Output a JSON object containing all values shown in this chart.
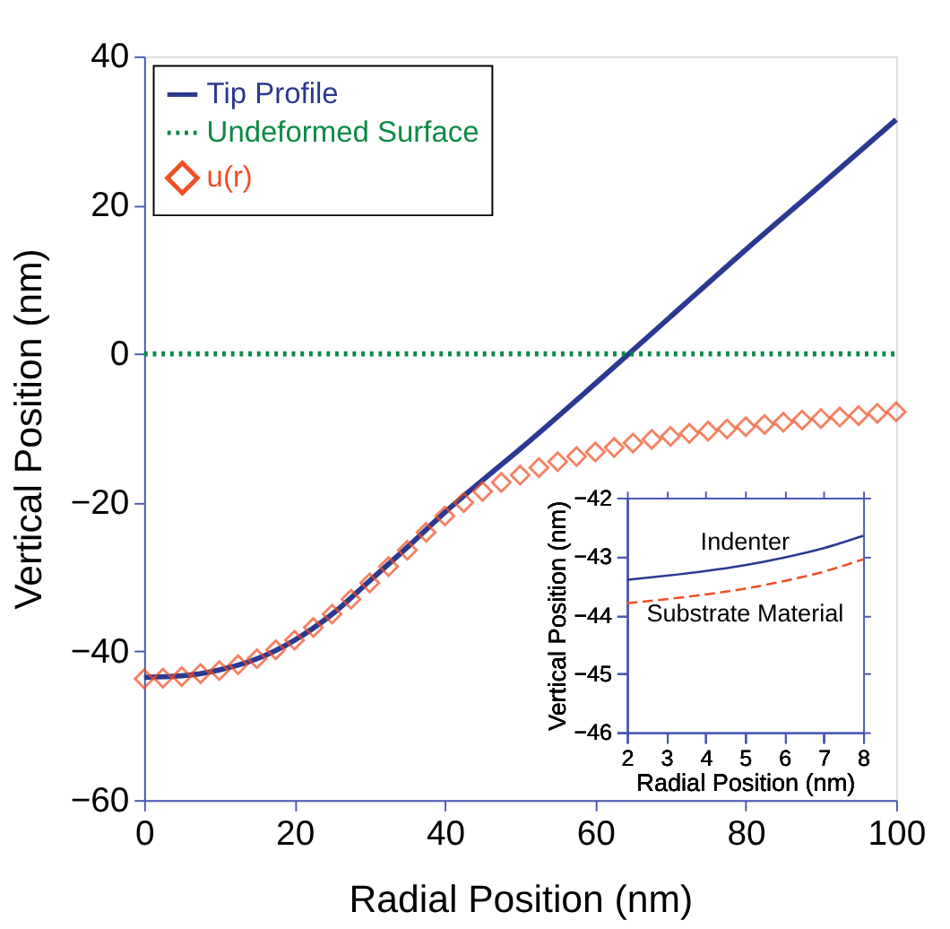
{
  "chart_data": [
    {
      "type": "line",
      "xlabel": "Radial Position (nm)",
      "ylabel": "Vertical Position (nm)",
      "xlim": [
        0,
        100
      ],
      "ylim": [
        -60,
        40
      ],
      "xticks": [
        0,
        20,
        40,
        60,
        80,
        100
      ],
      "yticks": [
        -60,
        -40,
        -20,
        0,
        20,
        40
      ],
      "legend": "top left",
      "series": [
        {
          "name": "Tip Profile",
          "color": "#2b3990",
          "line_style": "solid",
          "x": [
            0,
            5,
            10,
            15,
            20,
            25,
            30,
            35,
            40,
            45,
            50,
            60,
            70,
            80,
            90,
            100
          ],
          "values": [
            -43.5,
            -43.3,
            -42.5,
            -41,
            -38.5,
            -35,
            -30.5,
            -26,
            -21.3,
            -17,
            -12.8,
            -4,
            5,
            14,
            22.7,
            31.5
          ]
        },
        {
          "name": "Undeformed Surface",
          "color": "#0b8a45",
          "line_style": "dotted",
          "x": [
            0,
            100
          ],
          "values": [
            0,
            0
          ]
        },
        {
          "name": "u(r)",
          "type": "scatter",
          "color": "#f04e23",
          "marker": "diamond",
          "x": [
            0,
            2.5,
            5,
            7.5,
            10,
            12.5,
            15,
            17.5,
            20,
            22.5,
            25,
            27.5,
            30,
            32.5,
            35,
            37.5,
            40,
            42.5,
            45,
            47.5,
            50,
            52.5,
            55,
            57.5,
            60,
            62.5,
            65,
            67.5,
            70,
            72.5,
            75,
            77.5,
            80,
            82.5,
            85,
            87.5,
            90,
            92.5,
            95,
            97.5,
            100
          ],
          "values": [
            -43.7,
            -43.6,
            -43.4,
            -43,
            -42.6,
            -41.8,
            -41,
            -39.8,
            -38.5,
            -36.8,
            -35,
            -33,
            -30.8,
            -28.6,
            -26.4,
            -24,
            -21.8,
            -20,
            -18.5,
            -17.3,
            -16.3,
            -15.3,
            -14.5,
            -13.8,
            -13.2,
            -12.6,
            -12,
            -11.5,
            -11.1,
            -10.7,
            -10.4,
            -10.1,
            -9.8,
            -9.5,
            -9.2,
            -8.9,
            -8.7,
            -8.5,
            -8.3,
            -8,
            -7.8
          ]
        }
      ]
    },
    {
      "type": "line",
      "xlabel": "Radial Position (nm)",
      "ylabel": "Vertical Position (nm)",
      "xlim": [
        2,
        8
      ],
      "ylim": [
        -46,
        -42
      ],
      "xticks": [
        2,
        3,
        4,
        5,
        6,
        7,
        8
      ],
      "yticks": [
        -46,
        -45,
        -44,
        -43,
        -42
      ],
      "series": [
        {
          "color": "#2b3990",
          "line_style": "solid",
          "x": [
            2,
            3,
            4,
            5,
            6,
            7,
            8
          ],
          "values": [
            -43.4,
            -43.33,
            -43.25,
            -43.15,
            -43.02,
            -42.86,
            -42.65
          ]
        },
        {
          "color": "#f04e23",
          "line_style": "dashed",
          "x": [
            2,
            3,
            4,
            5,
            6,
            7,
            8
          ],
          "values": [
            -43.8,
            -43.73,
            -43.65,
            -43.55,
            -43.42,
            -43.26,
            -43.05
          ]
        }
      ],
      "annotations": [
        "Indenter",
        "Substrate Material"
      ]
    }
  ]
}
